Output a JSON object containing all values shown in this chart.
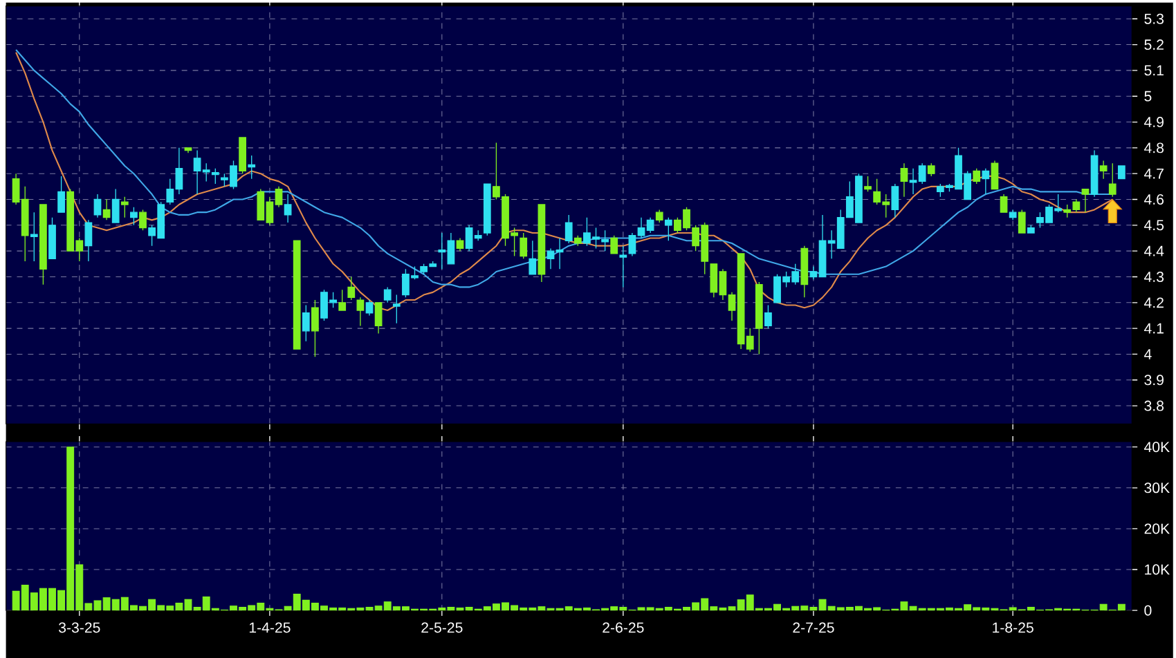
{
  "chart_data": [
    {
      "type": "candlestick",
      "categories": [
        null,
        null,
        null,
        null,
        null,
        null,
        null,
        null,
        null,
        null,
        null,
        null,
        null,
        null,
        null,
        null,
        null,
        null,
        null,
        null,
        null,
        null,
        null,
        null,
        null,
        null,
        null,
        null,
        null,
        null,
        null,
        null,
        null,
        null,
        null,
        null,
        null,
        null,
        null,
        null,
        null,
        null,
        null,
        null,
        null,
        null,
        null,
        null,
        null,
        null,
        null,
        null,
        null,
        null,
        null,
        null,
        null,
        null,
        null,
        null,
        null,
        null,
        null,
        null,
        null,
        null,
        null,
        null,
        null,
        null,
        null,
        null,
        null,
        null,
        null,
        null,
        null,
        null,
        null,
        null,
        null,
        null,
        null,
        null,
        null,
        null,
        null,
        null,
        null,
        null,
        null,
        null,
        null,
        null,
        null,
        null,
        null,
        null,
        null,
        null,
        null,
        null,
        null,
        null,
        null,
        null,
        null,
        null,
        null,
        null,
        null,
        null,
        null,
        null,
        null,
        null,
        null,
        null,
        null,
        null,
        null,
        null,
        null
      ],
      "ohlc": [
        [
          4.68,
          4.7,
          4.58,
          4.59
        ],
        [
          4.6,
          4.65,
          4.36,
          4.46
        ],
        [
          4.46,
          4.55,
          4.36,
          4.46
        ],
        [
          4.58,
          4.58,
          4.27,
          4.33
        ],
        [
          4.37,
          4.53,
          4.37,
          4.5
        ],
        [
          4.55,
          4.69,
          4.55,
          4.63
        ],
        [
          4.63,
          4.64,
          4.4,
          4.4
        ],
        [
          4.44,
          4.45,
          4.36,
          4.4
        ],
        [
          4.42,
          4.52,
          4.36,
          4.51
        ],
        [
          4.54,
          4.62,
          4.53,
          4.6
        ],
        [
          4.56,
          4.6,
          4.52,
          4.53
        ],
        [
          4.51,
          4.64,
          4.51,
          4.6
        ],
        [
          4.59,
          4.61,
          4.53,
          4.58
        ],
        [
          4.53,
          4.57,
          4.5,
          4.55
        ],
        [
          4.55,
          4.56,
          4.48,
          4.49
        ],
        [
          4.46,
          4.5,
          4.42,
          4.49
        ],
        [
          4.45,
          4.59,
          4.45,
          4.58
        ],
        [
          4.59,
          4.68,
          4.58,
          4.64
        ],
        [
          4.64,
          4.8,
          4.62,
          4.72
        ],
        [
          4.8,
          4.8,
          4.78,
          4.79
        ],
        [
          4.71,
          4.79,
          4.62,
          4.76
        ],
        [
          4.71,
          4.74,
          4.67,
          4.71
        ],
        [
          4.7,
          4.72,
          4.66,
          4.7
        ],
        [
          4.68,
          4.7,
          4.65,
          4.68
        ],
        [
          4.65,
          4.75,
          4.64,
          4.73
        ],
        [
          4.84,
          4.84,
          4.7,
          4.71
        ],
        [
          4.73,
          4.77,
          4.68,
          4.73
        ],
        [
          4.63,
          4.64,
          4.52,
          4.52
        ],
        [
          4.59,
          4.61,
          4.5,
          4.51
        ],
        [
          4.64,
          4.65,
          4.57,
          4.58
        ],
        [
          4.54,
          4.62,
          4.51,
          4.58
        ],
        [
          4.44,
          4.44,
          4.02,
          4.02
        ],
        [
          4.09,
          4.19,
          4.05,
          4.16
        ],
        [
          4.18,
          4.21,
          3.99,
          4.09
        ],
        [
          4.14,
          4.25,
          4.13,
          4.24
        ],
        [
          4.2,
          4.24,
          4.18,
          4.21
        ],
        [
          4.2,
          4.25,
          4.17,
          4.17
        ],
        [
          4.26,
          4.3,
          4.21,
          4.22
        ],
        [
          4.21,
          4.22,
          4.11,
          4.17
        ],
        [
          4.16,
          4.21,
          4.15,
          4.2
        ],
        [
          4.2,
          4.2,
          4.08,
          4.11
        ],
        [
          4.21,
          4.26,
          4.2,
          4.25
        ],
        [
          4.19,
          4.23,
          4.12,
          4.19
        ],
        [
          4.23,
          4.33,
          4.22,
          4.31
        ],
        [
          4.3,
          4.34,
          4.29,
          4.3
        ],
        [
          4.32,
          4.35,
          4.31,
          4.34
        ],
        [
          4.34,
          4.36,
          4.34,
          4.35
        ],
        [
          4.4,
          4.47,
          4.33,
          4.4
        ],
        [
          4.35,
          4.47,
          4.35,
          4.44
        ],
        [
          4.44,
          4.45,
          4.4,
          4.41
        ],
        [
          4.41,
          4.5,
          4.4,
          4.49
        ],
        [
          4.45,
          4.48,
          4.44,
          4.46
        ],
        [
          4.47,
          4.66,
          4.46,
          4.66
        ],
        [
          4.65,
          4.82,
          4.6,
          4.61
        ],
        [
          4.61,
          4.62,
          4.42,
          4.45
        ],
        [
          4.47,
          4.49,
          4.38,
          4.46
        ],
        [
          4.45,
          4.47,
          4.37,
          4.38
        ],
        [
          4.31,
          4.44,
          4.31,
          4.37
        ],
        [
          4.58,
          4.58,
          4.28,
          4.31
        ],
        [
          4.37,
          4.41,
          4.33,
          4.4
        ],
        [
          4.4,
          4.45,
          4.33,
          4.4
        ],
        [
          4.44,
          4.54,
          4.43,
          4.51
        ],
        [
          4.45,
          4.46,
          4.42,
          4.43
        ],
        [
          4.43,
          4.53,
          4.42,
          4.47
        ],
        [
          4.45,
          4.49,
          4.41,
          4.45
        ],
        [
          4.44,
          4.48,
          4.4,
          4.44
        ],
        [
          4.45,
          4.46,
          4.39,
          4.39
        ],
        [
          4.38,
          4.42,
          4.26,
          4.38
        ],
        [
          4.39,
          4.47,
          4.38,
          4.46
        ],
        [
          4.46,
          4.53,
          4.45,
          4.49
        ],
        [
          4.48,
          4.53,
          4.47,
          4.52
        ],
        [
          4.55,
          4.56,
          4.51,
          4.52
        ],
        [
          4.5,
          4.53,
          4.44,
          4.52
        ],
        [
          4.52,
          4.53,
          4.47,
          4.48
        ],
        [
          4.56,
          4.57,
          4.48,
          4.49
        ],
        [
          4.49,
          4.5,
          4.4,
          4.42
        ],
        [
          4.5,
          4.51,
          4.31,
          4.36
        ],
        [
          4.35,
          4.35,
          4.22,
          4.24
        ],
        [
          4.32,
          4.33,
          4.21,
          4.23
        ],
        [
          4.23,
          4.24,
          4.13,
          4.17
        ],
        [
          4.39,
          4.39,
          4.02,
          4.04
        ],
        [
          4.07,
          4.1,
          4.01,
          4.02
        ],
        [
          4.27,
          4.28,
          4.0,
          4.1
        ],
        [
          4.11,
          4.19,
          4.1,
          4.16
        ],
        [
          4.2,
          4.31,
          4.2,
          4.3
        ],
        [
          4.28,
          4.32,
          4.26,
          4.3
        ],
        [
          4.28,
          4.35,
          4.27,
          4.32
        ],
        [
          4.41,
          4.42,
          4.22,
          4.27
        ],
        [
          4.3,
          4.34,
          4.29,
          4.32
        ],
        [
          4.3,
          4.54,
          4.3,
          4.44
        ],
        [
          4.43,
          4.48,
          4.37,
          4.44
        ],
        [
          4.41,
          4.56,
          4.41,
          4.53
        ],
        [
          4.53,
          4.67,
          4.53,
          4.61
        ],
        [
          4.51,
          4.7,
          4.51,
          4.69
        ],
        [
          4.65,
          4.69,
          4.63,
          4.64
        ],
        [
          4.63,
          4.68,
          4.58,
          4.59
        ],
        [
          4.59,
          4.62,
          4.53,
          4.58
        ],
        [
          4.56,
          4.66,
          4.53,
          4.65
        ],
        [
          4.72,
          4.74,
          4.61,
          4.67
        ],
        [
          4.67,
          4.72,
          4.62,
          4.67
        ],
        [
          4.67,
          4.74,
          4.66,
          4.73
        ],
        [
          4.73,
          4.74,
          4.69,
          4.7
        ],
        [
          4.63,
          4.66,
          4.61,
          4.65
        ],
        [
          4.65,
          4.66,
          4.63,
          4.65
        ],
        [
          4.64,
          4.8,
          4.64,
          4.77
        ],
        [
          4.6,
          4.71,
          4.6,
          4.7
        ],
        [
          4.71,
          4.72,
          4.66,
          4.67
        ],
        [
          4.68,
          4.72,
          4.62,
          4.71
        ],
        [
          4.74,
          4.75,
          4.64,
          4.64
        ],
        [
          4.61,
          4.62,
          4.55,
          4.55
        ],
        [
          4.53,
          4.56,
          4.52,
          4.55
        ],
        [
          4.55,
          4.56,
          4.47,
          4.47
        ],
        [
          4.47,
          4.5,
          4.47,
          4.49
        ],
        [
          4.51,
          4.55,
          4.49,
          4.53
        ],
        [
          4.51,
          4.58,
          4.51,
          4.57
        ],
        [
          4.56,
          4.62,
          4.55,
          4.56
        ],
        [
          4.56,
          4.58,
          4.53,
          4.55
        ],
        [
          4.59,
          4.6,
          4.55,
          4.56
        ],
        [
          4.64,
          4.64,
          4.55,
          4.62
        ],
        [
          4.62,
          4.79,
          4.61,
          4.77
        ],
        [
          4.73,
          4.75,
          4.68,
          4.71
        ],
        [
          4.66,
          4.74,
          4.61,
          4.62
        ],
        [
          4.68,
          4.73,
          4.68,
          4.73
        ]
      ],
      "colors": [
        "#80f020",
        "#80f020",
        "#30e0f0",
        "#80f020",
        "#30e0f0",
        "#30e0f0",
        "#80f020",
        "#80f020",
        "#30e0f0",
        "#30e0f0",
        "#80f020",
        "#30e0f0",
        "#80f020",
        "#30e0f0",
        "#80f020",
        "#30e0f0",
        "#30e0f0",
        "#30e0f0",
        "#30e0f0",
        "#80f020",
        "#30e0f0",
        "#30e0f0",
        "#30e0f0",
        "#30e0f0",
        "#30e0f0",
        "#80f020",
        "#30e0f0",
        "#80f020",
        "#80f020",
        "#80f020",
        "#30e0f0",
        "#80f020",
        "#30e0f0",
        "#80f020",
        "#30e0f0",
        "#30e0f0",
        "#80f020",
        "#80f020",
        "#80f020",
        "#30e0f0",
        "#80f020",
        "#30e0f0",
        "#30e0f0",
        "#30e0f0",
        "#30e0f0",
        "#30e0f0",
        "#30e0f0",
        "#30e0f0",
        "#30e0f0",
        "#80f020",
        "#30e0f0",
        "#30e0f0",
        "#30e0f0",
        "#80f020",
        "#80f020",
        "#80f020",
        "#80f020",
        "#30e0f0",
        "#80f020",
        "#30e0f0",
        "#30e0f0",
        "#30e0f0",
        "#80f020",
        "#30e0f0",
        "#30e0f0",
        "#30e0f0",
        "#80f020",
        "#30e0f0",
        "#30e0f0",
        "#30e0f0",
        "#30e0f0",
        "#80f020",
        "#30e0f0",
        "#80f020",
        "#80f020",
        "#80f020",
        "#80f020",
        "#80f020",
        "#80f020",
        "#80f020",
        "#80f020",
        "#80f020",
        "#80f020",
        "#30e0f0",
        "#30e0f0",
        "#30e0f0",
        "#30e0f0",
        "#80f020",
        "#30e0f0",
        "#30e0f0",
        "#30e0f0",
        "#30e0f0",
        "#30e0f0",
        "#30e0f0",
        "#80f020",
        "#80f020",
        "#80f020",
        "#30e0f0",
        "#80f020",
        "#30e0f0",
        "#30e0f0",
        "#80f020",
        "#30e0f0",
        "#30e0f0",
        "#30e0f0",
        "#30e0f0",
        "#80f020",
        "#30e0f0",
        "#80f020",
        "#80f020",
        "#30e0f0",
        "#80f020",
        "#30e0f0",
        "#30e0f0",
        "#30e0f0",
        "#30e0f0",
        "#80f020",
        "#80f020",
        "#80f020",
        "#30e0f0",
        "#80f020",
        "#80f020",
        "#30e0f0"
      ],
      "series": [
        {
          "type": "line",
          "color": "#e08a4a",
          "values": [
            5.17,
            5.09,
            4.99,
            4.9,
            4.79,
            4.71,
            4.63,
            4.55,
            4.5,
            4.49,
            4.48,
            4.49,
            4.5,
            4.51,
            4.53,
            4.52,
            4.53,
            4.55,
            4.58,
            4.6,
            4.62,
            4.63,
            4.64,
            4.65,
            4.66,
            4.69,
            4.71,
            4.7,
            4.68,
            4.67,
            4.65,
            4.58,
            4.51,
            4.45,
            4.4,
            4.35,
            4.32,
            4.28,
            4.24,
            4.21,
            4.18,
            4.17,
            4.19,
            4.21,
            4.21,
            4.23,
            4.24,
            4.26,
            4.28,
            4.31,
            4.33,
            4.36,
            4.39,
            4.42,
            4.47,
            4.48,
            4.48,
            4.47,
            4.47,
            4.46,
            4.45,
            4.44,
            4.43,
            4.43,
            4.42,
            4.42,
            4.42,
            4.42,
            4.43,
            4.44,
            4.45,
            4.45,
            4.46,
            4.47,
            4.47,
            4.47,
            4.46,
            4.46,
            4.44,
            4.41,
            4.38,
            4.33,
            4.25,
            4.22,
            4.2,
            4.19,
            4.19,
            4.18,
            4.19,
            4.22,
            4.26,
            4.32,
            4.36,
            4.41,
            4.45,
            4.48,
            4.5,
            4.53,
            4.57,
            4.61,
            4.64,
            4.65,
            4.65,
            4.65,
            4.65,
            4.67,
            4.68,
            4.69,
            4.69,
            4.68,
            4.66,
            4.63,
            4.62,
            4.6,
            4.59,
            4.57,
            4.55,
            4.55,
            4.55,
            4.56,
            4.58,
            4.6,
            null
          ]
        },
        {
          "type": "line",
          "color": "#40a8e8",
          "values": [
            5.18,
            5.14,
            5.1,
            5.07,
            5.04,
            5.01,
            4.97,
            4.94,
            4.89,
            4.85,
            4.81,
            4.77,
            4.73,
            4.7,
            4.66,
            4.62,
            4.57,
            4.55,
            4.54,
            4.54,
            4.55,
            4.55,
            4.56,
            4.58,
            4.6,
            4.6,
            4.61,
            4.63,
            4.63,
            4.63,
            4.63,
            4.61,
            4.59,
            4.57,
            4.55,
            4.54,
            4.53,
            4.51,
            4.49,
            4.46,
            4.42,
            4.39,
            4.37,
            4.35,
            4.33,
            4.31,
            4.28,
            4.27,
            4.27,
            4.26,
            4.26,
            4.27,
            4.29,
            4.32,
            4.33,
            4.34,
            4.35,
            4.36,
            4.37,
            4.38,
            4.4,
            4.42,
            4.43,
            4.44,
            4.45,
            4.45,
            4.45,
            4.45,
            4.45,
            4.45,
            4.46,
            4.46,
            4.46,
            4.45,
            4.44,
            4.44,
            4.44,
            4.44,
            4.44,
            4.43,
            4.41,
            4.39,
            4.37,
            4.36,
            4.35,
            4.34,
            4.33,
            4.32,
            4.32,
            4.31,
            4.31,
            4.31,
            4.31,
            4.31,
            4.32,
            4.33,
            4.34,
            4.36,
            4.38,
            4.4,
            4.43,
            4.46,
            4.49,
            4.52,
            4.55,
            4.57,
            4.6,
            4.62,
            4.63,
            4.64,
            4.65,
            4.64,
            4.64,
            4.63,
            4.63,
            4.63,
            4.63,
            4.63,
            4.62,
            4.62,
            4.62,
            4.62,
            null
          ]
        }
      ],
      "ylim": [
        3.73,
        5.35
      ],
      "yticks": [
        3.8,
        3.9,
        4,
        4.1,
        4.2,
        4.3,
        4.4,
        4.5,
        4.6,
        4.7,
        4.8,
        4.9,
        5,
        5.1,
        5.2,
        5.3
      ],
      "grid": true,
      "tick_labels": "y"
    },
    {
      "type": "bar",
      "categories": [
        null,
        null,
        null,
        null,
        null,
        null,
        null,
        "3-3-25",
        null,
        null,
        null,
        null,
        null,
        null,
        null,
        null,
        null,
        null,
        null,
        null,
        null,
        null,
        null,
        null,
        null,
        null,
        null,
        null,
        "1-4-25",
        null,
        null,
        null,
        null,
        null,
        null,
        null,
        null,
        null,
        null,
        null,
        null,
        null,
        null,
        null,
        null,
        null,
        null,
        "2-5-25",
        null,
        null,
        null,
        null,
        null,
        null,
        null,
        null,
        null,
        null,
        null,
        null,
        null,
        null,
        null,
        null,
        null,
        null,
        null,
        "2-6-25",
        null,
        null,
        null,
        null,
        null,
        null,
        null,
        null,
        null,
        null,
        null,
        null,
        null,
        null,
        null,
        null,
        null,
        null,
        null,
        null,
        "2-7-25",
        null,
        null,
        null,
        null,
        null,
        null,
        null,
        null,
        null,
        null,
        null,
        null,
        null,
        null,
        null,
        null,
        null,
        null,
        null,
        null,
        null,
        "1-8-25",
        null,
        null,
        null,
        null,
        null,
        null,
        null,
        null,
        null,
        null,
        null,
        null
      ],
      "values": [
        4700,
        6200,
        4300,
        5400,
        5400,
        4900,
        40000,
        11200,
        1700,
        2400,
        3100,
        2700,
        3200,
        1200,
        1000,
        2700,
        1200,
        1100,
        1800,
        2700,
        800,
        3300,
        500,
        100,
        1100,
        800,
        1200,
        1800,
        500,
        200,
        1000,
        4000,
        2500,
        1800,
        1100,
        600,
        600,
        500,
        600,
        800,
        1100,
        2100,
        900,
        900,
        300,
        300,
        300,
        600,
        800,
        600,
        800,
        300,
        900,
        1600,
        1900,
        1200,
        600,
        600,
        900,
        500,
        500,
        900,
        500,
        600,
        200,
        500,
        900,
        800,
        100,
        700,
        700,
        500,
        800,
        300,
        800,
        1900,
        2900,
        900,
        600,
        900,
        2600,
        3800,
        500,
        500,
        1500,
        500,
        1000,
        1100,
        800,
        2700,
        1000,
        700,
        800,
        1000,
        500,
        700,
        100,
        300,
        2100,
        1000,
        500,
        500,
        500,
        600,
        500,
        1400,
        700,
        600,
        500,
        200,
        700,
        200,
        800,
        100,
        200,
        500,
        300,
        300,
        100,
        100,
        1500,
        100,
        1500
      ],
      "color": "#80f020",
      "ylim": [
        0,
        41300
      ],
      "yticks": [
        0,
        {
          "value": 10000,
          "label": "10K"
        },
        {
          "value": 20000,
          "label": "20K"
        },
        {
          "value": 30000,
          "label": "30K"
        },
        {
          "value": 40000,
          "label": "40K"
        }
      ],
      "grid": true
    }
  ]
}
